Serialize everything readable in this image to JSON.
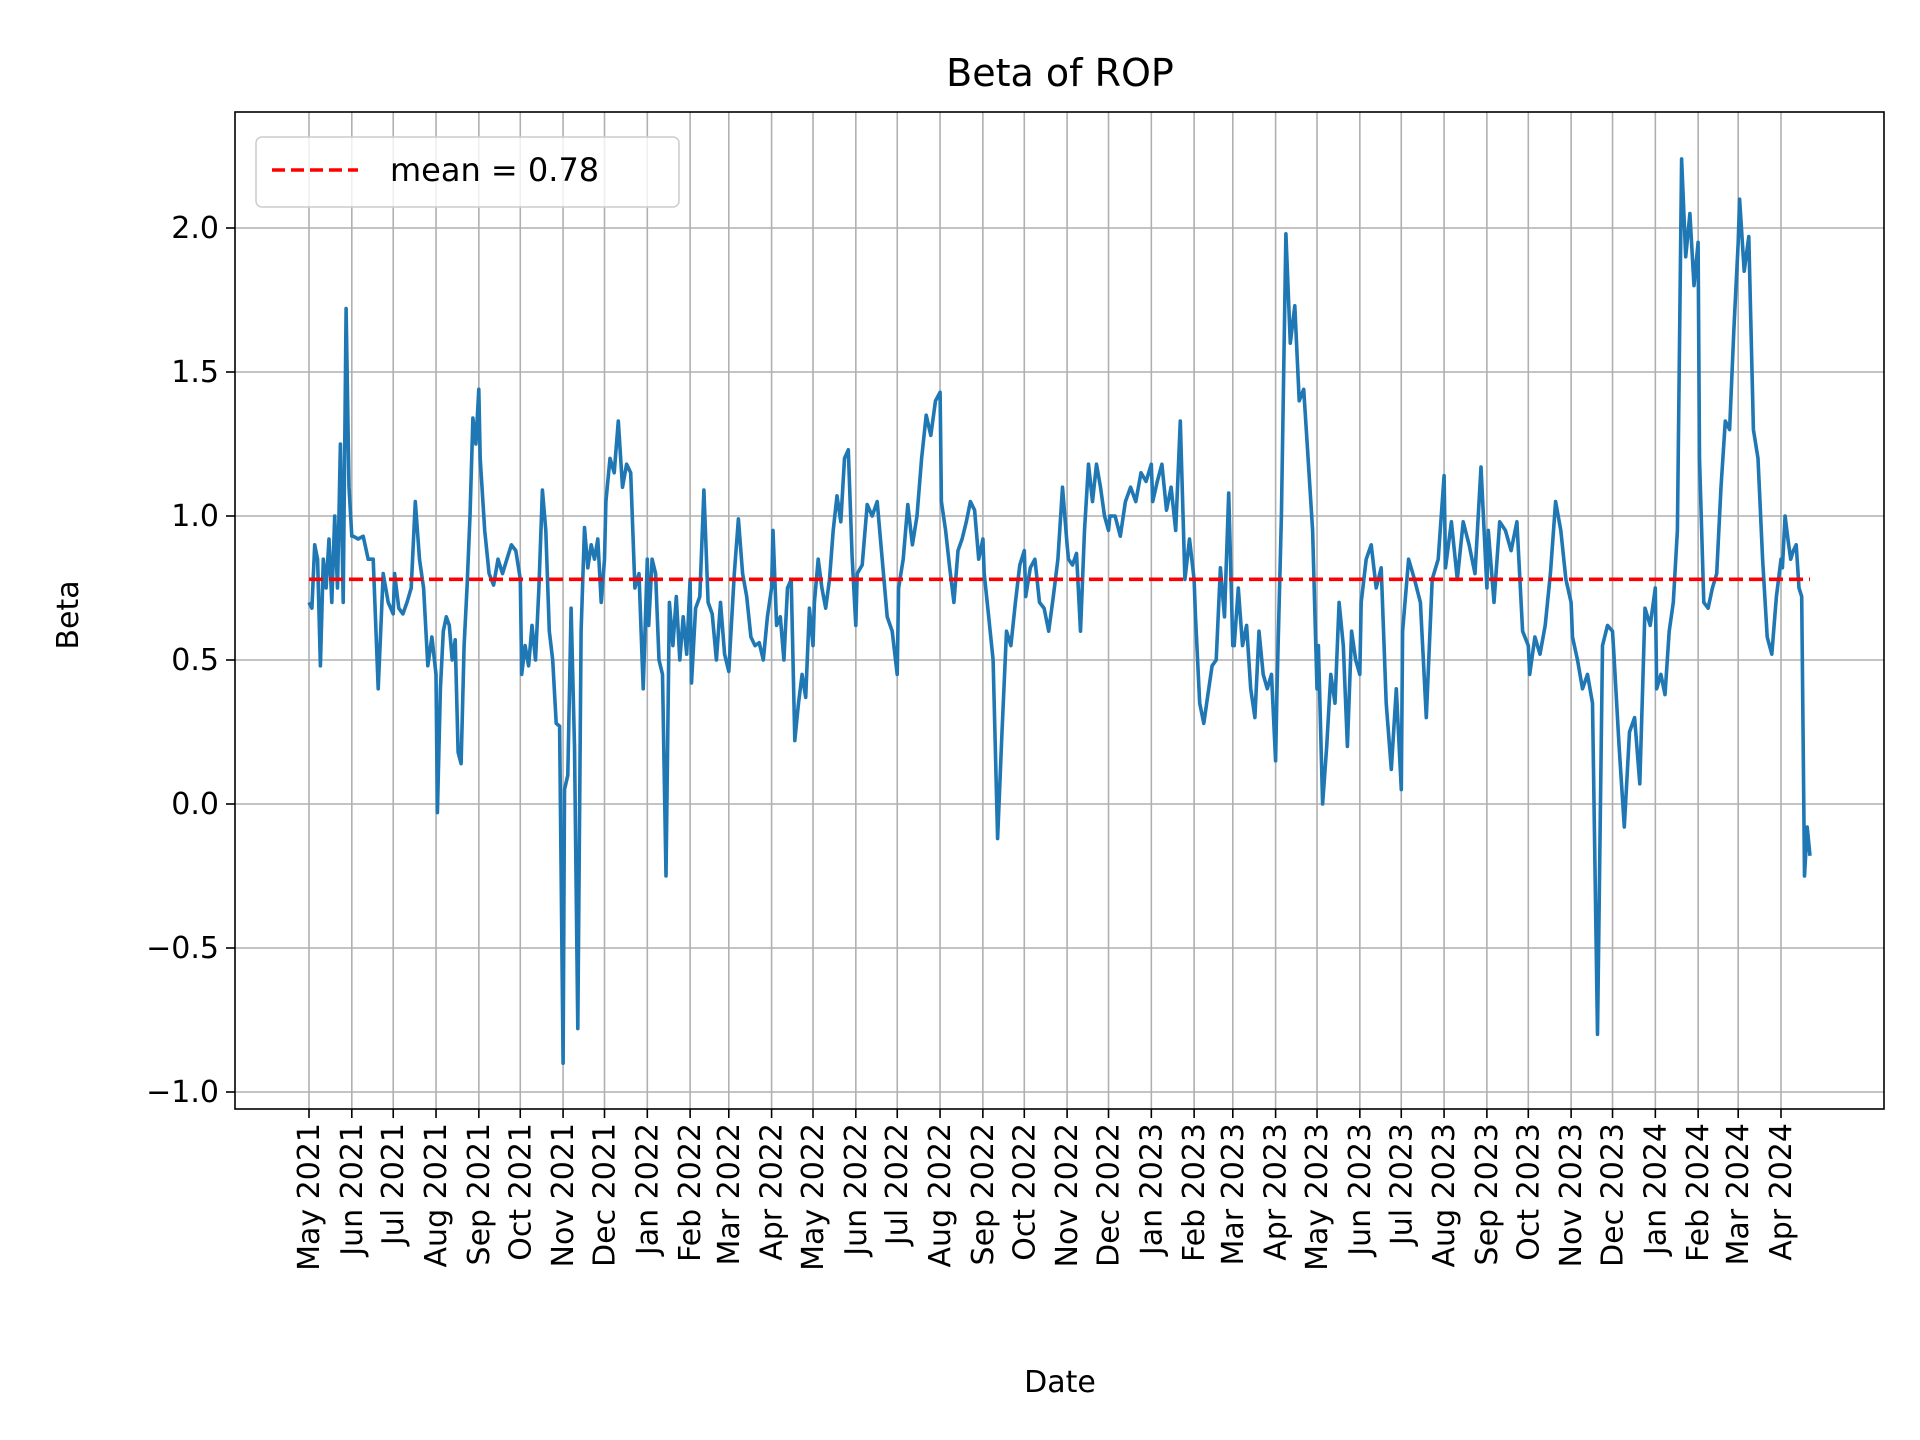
{
  "chart_data": {
    "type": "line",
    "title": "Beta of ROP",
    "xlabel": "Date",
    "ylabel": "Beta",
    "ylim": [
      -1.05,
      2.4
    ],
    "yticks": [
      -1.0,
      -0.5,
      0.0,
      0.5,
      1.0,
      1.5,
      2.0
    ],
    "ytick_labels": [
      "−1.0",
      "−0.5",
      "0.0",
      "0.5",
      "1.0",
      "1.5",
      "2.0"
    ],
    "xticks": [
      "2021-05-01",
      "2021-06-01",
      "2021-07-01",
      "2021-08-01",
      "2021-09-01",
      "2021-10-01",
      "2021-11-01",
      "2021-12-01",
      "2022-01-01",
      "2022-02-01",
      "2022-03-01",
      "2022-04-01",
      "2022-05-01",
      "2022-06-01",
      "2022-07-01",
      "2022-08-01",
      "2022-09-01",
      "2022-10-01",
      "2022-11-01",
      "2022-12-01",
      "2023-01-01",
      "2023-02-01",
      "2023-03-01",
      "2023-04-01",
      "2023-05-01",
      "2023-06-01",
      "2023-07-01",
      "2023-08-01",
      "2023-09-01",
      "2023-10-01",
      "2023-11-01",
      "2023-12-01",
      "2024-01-01",
      "2024-02-01",
      "2024-03-01",
      "2024-04-01"
    ],
    "xtick_labels": [
      "May 2021",
      "Jun 2021",
      "Jul 2021",
      "Aug 2021",
      "Sep 2021",
      "Oct 2021",
      "Nov 2021",
      "Dec 2021",
      "Jan 2022",
      "Feb 2022",
      "Mar 2022",
      "Apr 2022",
      "May 2022",
      "Jun 2022",
      "Jul 2022",
      "Aug 2022",
      "Sep 2022",
      "Oct 2022",
      "Nov 2022",
      "Dec 2022",
      "Jan 2023",
      "Feb 2023",
      "Mar 2023",
      "Apr 2023",
      "May 2023",
      "Jun 2023",
      "Jul 2023",
      "Aug 2023",
      "Sep 2023",
      "Oct 2023",
      "Nov 2023",
      "Dec 2023",
      "Jan 2024",
      "Feb 2024",
      "Mar 2024",
      "Apr 2024"
    ],
    "grid": true,
    "legend_position": "top-left",
    "series": [
      {
        "name": "Beta",
        "color": "#1f77b4",
        "segments": [
          {
            "start": "2021-05-01",
            "end": "2021-06-01",
            "values": [
              0.7,
              0.68,
              0.9,
              0.85,
              0.48,
              0.85,
              0.75,
              0.92,
              0.7,
              1.0,
              0.75,
              1.25,
              0.7,
              1.72,
              1.1,
              0.93
            ]
          },
          {
            "start": "2021-06-02",
            "end": "2021-07-01",
            "values": [
              0.93,
              0.92,
              0.93,
              0.85,
              0.85,
              0.4,
              0.8,
              0.7,
              0.66
            ]
          },
          {
            "start": "2021-07-02",
            "end": "2021-08-01",
            "values": [
              0.8,
              0.68,
              0.66,
              0.7,
              0.75,
              1.05,
              0.85,
              0.75,
              0.48,
              0.58,
              0.45
            ]
          },
          {
            "start": "2021-08-02",
            "end": "2021-09-01",
            "values": [
              -0.03,
              0.4,
              0.6,
              0.65,
              0.62,
              0.5,
              0.57,
              0.18,
              0.14,
              0.55,
              0.75,
              1.0,
              1.34,
              1.25,
              1.44
            ]
          },
          {
            "start": "2021-09-02",
            "end": "2021-10-01",
            "values": [
              1.2,
              0.95,
              0.8,
              0.76,
              0.85,
              0.8,
              0.85,
              0.9,
              0.88,
              0.78
            ]
          },
          {
            "start": "2021-10-02",
            "end": "2021-11-01",
            "values": [
              0.45,
              0.55,
              0.48,
              0.62,
              0.5,
              0.75,
              1.09,
              0.95,
              0.6,
              0.5,
              0.28,
              0.27,
              -0.9
            ]
          },
          {
            "start": "2021-11-02",
            "end": "2021-12-01",
            "values": [
              0.05,
              0.1,
              0.68,
              0.2,
              -0.78,
              0.6,
              0.96,
              0.82,
              0.9,
              0.85,
              0.92,
              0.7,
              0.85
            ]
          },
          {
            "start": "2021-12-02",
            "end": "2022-01-01",
            "values": [
              1.05,
              1.2,
              1.15,
              1.33,
              1.1,
              1.18,
              1.15,
              0.75,
              0.8,
              0.4,
              0.85
            ]
          },
          {
            "start": "2022-01-02",
            "end": "2022-02-01",
            "values": [
              0.62,
              0.85,
              0.8,
              0.5,
              0.45,
              -0.25,
              0.7,
              0.55,
              0.72,
              0.5,
              0.65,
              0.52,
              0.78
            ]
          },
          {
            "start": "2022-02-02",
            "end": "2022-03-01",
            "values": [
              0.42,
              0.68,
              0.72,
              1.09,
              0.7,
              0.66,
              0.5,
              0.7,
              0.52,
              0.46
            ]
          },
          {
            "start": "2022-03-02",
            "end": "2022-04-01",
            "values": [
              0.55,
              0.8,
              0.99,
              0.8,
              0.72,
              0.58,
              0.55,
              0.56,
              0.5,
              0.65,
              0.75
            ]
          },
          {
            "start": "2022-04-02",
            "end": "2022-05-01",
            "values": [
              0.95,
              0.62,
              0.65,
              0.5,
              0.75,
              0.78,
              0.22,
              0.35,
              0.45,
              0.37,
              0.68,
              0.55
            ]
          },
          {
            "start": "2022-05-02",
            "end": "2022-06-01",
            "values": [
              0.7,
              0.85,
              0.75,
              0.68,
              0.78,
              0.95,
              1.07,
              0.98,
              1.2,
              1.23,
              0.86,
              0.62
            ]
          },
          {
            "start": "2022-06-02",
            "end": "2022-07-01",
            "values": [
              0.8,
              0.83,
              1.04,
              1.0,
              1.05,
              0.85,
              0.65,
              0.6,
              0.45
            ]
          },
          {
            "start": "2022-07-02",
            "end": "2022-08-01",
            "values": [
              0.75,
              0.85,
              1.04,
              0.9,
              1.0,
              1.2,
              1.35,
              1.28,
              1.4,
              1.43
            ]
          },
          {
            "start": "2022-08-02",
            "end": "2022-09-01",
            "values": [
              1.05,
              0.95,
              0.82,
              0.7,
              0.88,
              0.92,
              0.98,
              1.05,
              1.02,
              0.85,
              0.92
            ]
          },
          {
            "start": "2022-09-02",
            "end": "2022-10-01",
            "values": [
              0.8,
              0.65,
              0.5,
              -0.12,
              0.25,
              0.6,
              0.55,
              0.7,
              0.83,
              0.88
            ]
          },
          {
            "start": "2022-10-02",
            "end": "2022-11-01",
            "values": [
              0.72,
              0.82,
              0.85,
              0.7,
              0.68,
              0.6,
              0.72,
              0.85,
              1.1,
              0.9
            ]
          },
          {
            "start": "2022-11-02",
            "end": "2022-12-01",
            "values": [
              0.85,
              0.83,
              0.87,
              0.6,
              0.95,
              1.18,
              1.05,
              1.18,
              1.1,
              1.0,
              0.95
            ]
          },
          {
            "start": "2022-12-02",
            "end": "2023-01-01",
            "values": [
              1.0,
              1.0,
              0.93,
              1.05,
              1.1,
              1.05,
              1.15,
              1.12,
              1.18
            ]
          },
          {
            "start": "2023-01-02",
            "end": "2023-02-01",
            "values": [
              1.05,
              1.12,
              1.18,
              1.02,
              1.1,
              0.95,
              1.33,
              0.78,
              0.92,
              0.78
            ]
          },
          {
            "start": "2023-02-02",
            "end": "2023-03-01",
            "values": [
              0.65,
              0.35,
              0.28,
              0.38,
              0.48,
              0.5,
              0.82,
              0.65,
              1.08,
              0.55
            ]
          },
          {
            "start": "2023-03-02",
            "end": "2023-04-01",
            "values": [
              0.55,
              0.75,
              0.55,
              0.62,
              0.4,
              0.3,
              0.6,
              0.45,
              0.4,
              0.45,
              0.15
            ]
          },
          {
            "start": "2023-04-02",
            "end": "2023-05-01",
            "values": [
              0.4,
              1.0,
              1.98,
              1.6,
              1.73,
              1.4,
              1.44,
              1.2,
              0.95,
              0.4
            ]
          },
          {
            "start": "2023-05-02",
            "end": "2023-06-01",
            "values": [
              0.55,
              0.0,
              0.2,
              0.45,
              0.35,
              0.7,
              0.55,
              0.2,
              0.6,
              0.5,
              0.45
            ]
          },
          {
            "start": "2023-06-02",
            "end": "2023-07-01",
            "values": [
              0.7,
              0.85,
              0.9,
              0.75,
              0.82,
              0.35,
              0.12,
              0.4,
              0.05
            ]
          },
          {
            "start": "2023-07-02",
            "end": "2023-08-01",
            "values": [
              0.6,
              0.85,
              0.78,
              0.7,
              0.3,
              0.78,
              0.85,
              1.14
            ]
          },
          {
            "start": "2023-08-02",
            "end": "2023-09-01",
            "values": [
              0.82,
              0.98,
              0.78,
              0.98,
              0.9,
              0.8,
              1.17,
              0.75
            ]
          },
          {
            "start": "2023-09-02",
            "end": "2023-10-01",
            "values": [
              0.95,
              0.7,
              0.98,
              0.95,
              0.88,
              0.98,
              0.6,
              0.55
            ]
          },
          {
            "start": "2023-10-02",
            "end": "2023-11-01",
            "values": [
              0.45,
              0.58,
              0.52,
              0.62,
              0.8,
              1.05,
              0.95,
              0.78,
              0.7
            ]
          },
          {
            "start": "2023-11-02",
            "end": "2023-12-01",
            "values": [
              0.58,
              0.5,
              0.4,
              0.45,
              0.35,
              -0.8,
              0.55,
              0.62,
              0.6
            ]
          },
          {
            "start": "2023-12-02",
            "end": "2024-01-01",
            "values": [
              0.52,
              0.2,
              -0.08,
              0.25,
              0.3,
              0.07,
              0.68,
              0.62,
              0.75
            ]
          },
          {
            "start": "2024-01-02",
            "end": "2024-02-01",
            "values": [
              0.4,
              0.45,
              0.38,
              0.6,
              0.7,
              0.95,
              2.24,
              1.9,
              2.05,
              1.8,
              1.95
            ]
          },
          {
            "start": "2024-02-02",
            "end": "2024-03-01",
            "values": [
              1.2,
              0.7,
              0.68,
              0.75,
              0.8,
              1.1,
              1.33,
              1.3,
              1.65,
              1.95
            ]
          },
          {
            "start": "2024-03-02",
            "end": "2024-04-01",
            "values": [
              2.1,
              1.85,
              1.97,
              1.3,
              1.2,
              0.85,
              0.58,
              0.52,
              0.72,
              0.85
            ]
          },
          {
            "start": "2024-04-02",
            "end": "2024-04-22",
            "values": [
              0.82,
              1.0,
              0.92,
              0.85,
              0.88,
              0.9,
              0.75,
              0.72,
              -0.25,
              -0.08,
              -0.18
            ]
          }
        ]
      }
    ],
    "mean_line": {
      "value": 0.78,
      "label": "mean = 0.78",
      "color": "#ff0000",
      "style": "dashed"
    }
  }
}
